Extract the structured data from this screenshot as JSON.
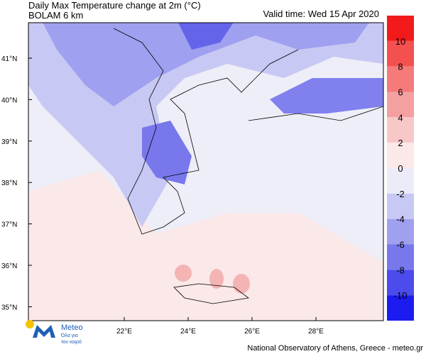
{
  "header": {
    "title": "Daily Max Temperature change at 2m (°C)",
    "subtitle": "BOLAM 6 km",
    "valid_time": "Valid time: Wed 15 Apr 2020"
  },
  "map": {
    "lat_labels": [
      "41°N",
      "40°N",
      "39°N",
      "38°N",
      "37°N",
      "36°N",
      "35°N"
    ],
    "lon_labels": [
      "22°E",
      "24°E",
      "26°E",
      "28°E"
    ]
  },
  "colorbar": {
    "ticks": [
      "10",
      "8",
      "6",
      "4",
      "2",
      "0",
      "-2",
      "-4",
      "-6",
      "-8",
      "-10"
    ],
    "colors": [
      "#f21a1a",
      "#f55050",
      "#f57a7a",
      "#f4a0a0",
      "#f8c8c8",
      "#fbe8e8",
      "#ececf8",
      "#c8c8f4",
      "#a0a0f0",
      "#7878ec",
      "#4c4cec",
      "#1c1cf0"
    ]
  },
  "logo": {
    "name": "Meteo",
    "tagline_1": "Όλα για",
    "tagline_2": "τον καιρό"
  },
  "footer": "National Observatory of Athens, Greece - meteo.gr"
}
